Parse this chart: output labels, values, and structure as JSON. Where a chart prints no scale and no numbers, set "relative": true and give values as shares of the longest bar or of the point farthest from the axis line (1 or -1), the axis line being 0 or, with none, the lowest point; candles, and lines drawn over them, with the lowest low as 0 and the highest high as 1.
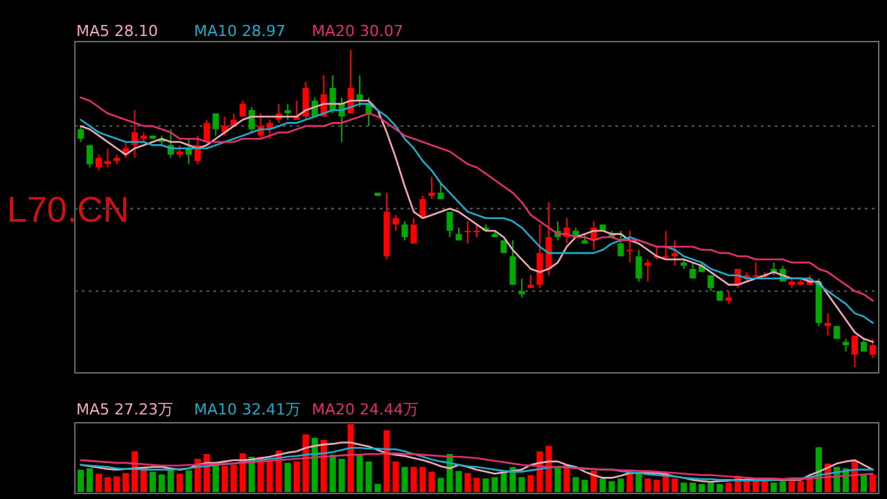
{
  "chart_data": [
    {
      "type": "candlestick",
      "relative": true,
      "legend": "top left",
      "annotations": [
        "L70.CN"
      ],
      "categories": [
        null,
        null,
        null,
        null,
        null,
        null,
        null,
        null,
        null,
        null,
        null,
        null,
        null,
        null,
        null,
        null,
        null,
        null,
        null,
        null,
        null,
        null,
        null,
        null,
        null,
        null,
        null,
        null,
        null,
        null,
        null,
        null,
        null,
        null,
        null,
        null,
        null,
        null,
        null,
        null,
        null,
        null,
        null,
        null,
        null,
        null,
        null,
        null,
        null,
        null,
        null,
        null,
        null,
        null,
        null,
        null,
        null,
        null,
        null,
        null,
        null,
        null,
        null,
        null,
        null,
        null,
        null,
        null,
        null,
        null,
        null,
        null,
        null,
        null,
        null,
        null,
        null,
        null,
        null,
        null,
        null,
        null,
        null,
        null,
        null,
        null,
        null,
        null,
        null
      ],
      "ohlc": [
        [
          0.75,
          0.76,
          0.71,
          0.72
        ],
        [
          0.7,
          0.7,
          0.63,
          0.64
        ],
        [
          0.63,
          0.67,
          0.62,
          0.66
        ],
        [
          0.64,
          0.69,
          0.63,
          0.65
        ],
        [
          0.65,
          0.67,
          0.64,
          0.66
        ],
        [
          0.67,
          0.71,
          0.66,
          0.69
        ],
        [
          0.7,
          0.81,
          0.66,
          0.74
        ],
        [
          0.72,
          0.74,
          0.71,
          0.73
        ],
        [
          0.73,
          0.73,
          0.72,
          0.72
        ],
        [
          0.72,
          0.73,
          0.7,
          0.71
        ],
        [
          0.7,
          0.75,
          0.66,
          0.67
        ],
        [
          0.67,
          0.7,
          0.66,
          0.68
        ],
        [
          0.69,
          0.72,
          0.64,
          0.67
        ],
        [
          0.65,
          0.73,
          0.64,
          0.7
        ],
        [
          0.71,
          0.78,
          0.71,
          0.77
        ],
        [
          0.8,
          0.8,
          0.73,
          0.75
        ],
        [
          0.74,
          0.79,
          0.73,
          0.76
        ],
        [
          0.76,
          0.8,
          0.76,
          0.78
        ],
        [
          0.79,
          0.84,
          0.79,
          0.83
        ],
        [
          0.81,
          0.82,
          0.74,
          0.75
        ],
        [
          0.73,
          0.8,
          0.72,
          0.76
        ],
        [
          0.75,
          0.78,
          0.72,
          0.77
        ],
        [
          0.78,
          0.83,
          0.77,
          0.8
        ],
        [
          0.81,
          0.83,
          0.78,
          0.8
        ],
        [
          0.78,
          0.84,
          0.78,
          0.79
        ],
        [
          0.79,
          0.9,
          0.78,
          0.88
        ],
        [
          0.84,
          0.85,
          0.79,
          0.79
        ],
        [
          0.79,
          0.92,
          0.79,
          0.86
        ],
        [
          0.88,
          0.92,
          0.8,
          0.81
        ],
        [
          0.83,
          0.85,
          0.71,
          0.79
        ],
        [
          0.8,
          1,
          0.8,
          0.88
        ],
        [
          0.86,
          0.92,
          0.82,
          0.84
        ],
        [
          0.83,
          0.85,
          0.76,
          0.8
        ],
        [
          0.55,
          0.55,
          0.54,
          0.54
        ],
        [
          0.35,
          0.55,
          0.34,
          0.49
        ],
        [
          0.45,
          0.48,
          0.43,
          0.47
        ],
        [
          0.45,
          0.46,
          0.4,
          0.41
        ],
        [
          0.39,
          0.47,
          0.39,
          0.45
        ],
        [
          0.47,
          0.54,
          0.47,
          0.53
        ],
        [
          0.54,
          0.6,
          0.53,
          0.55
        ],
        [
          0.55,
          0.58,
          0.53,
          0.53
        ],
        [
          0.49,
          0.49,
          0.41,
          0.43
        ],
        [
          0.42,
          0.44,
          0.4,
          0.4
        ],
        [
          0.43,
          0.46,
          0.39,
          0.43
        ],
        [
          0.43,
          0.45,
          0.41,
          0.43
        ],
        [
          0.44,
          0.45,
          0.43,
          0.43
        ],
        [
          0.42,
          0.43,
          0.41,
          0.41
        ],
        [
          0.4,
          0.4,
          0.36,
          0.36
        ],
        [
          0.35,
          0.4,
          0.26,
          0.26
        ],
        [
          0.24,
          0.28,
          0.22,
          0.23
        ],
        [
          0.25,
          0.29,
          0.25,
          0.26
        ],
        [
          0.26,
          0.45,
          0.25,
          0.36
        ],
        [
          0.31,
          0.52,
          0.29,
          0.41
        ],
        [
          0.43,
          0.46,
          0.4,
          0.41
        ],
        [
          0.41,
          0.47,
          0.39,
          0.44
        ],
        [
          0.43,
          0.44,
          0.41,
          0.41
        ],
        [
          0.4,
          0.42,
          0.39,
          0.39
        ],
        [
          0.4,
          0.46,
          0.37,
          0.44
        ],
        [
          0.45,
          0.45,
          0.43,
          0.43
        ],
        [
          0.42,
          0.43,
          0.41,
          0.41
        ],
        [
          0.39,
          0.43,
          0.35,
          0.35
        ],
        [
          0.37,
          0.43,
          0.33,
          0.37
        ],
        [
          0.35,
          0.37,
          0.27,
          0.28
        ],
        [
          0.32,
          0.34,
          0.27,
          0.33
        ],
        [
          0.35,
          0.38,
          0.34,
          0.35
        ],
        [
          0.35,
          0.43,
          0.34,
          0.35
        ],
        [
          0.35,
          0.4,
          0.32,
          0.36
        ],
        [
          0.33,
          0.34,
          0.31,
          0.32
        ],
        [
          0.31,
          0.33,
          0.28,
          0.28
        ],
        [
          0.32,
          0.33,
          0.3,
          0.3
        ],
        [
          0.29,
          0.29,
          0.24,
          0.25
        ],
        [
          0.24,
          0.24,
          0.21,
          0.21
        ],
        [
          0.21,
          0.24,
          0.2,
          0.22
        ],
        [
          0.26,
          0.31,
          0.25,
          0.31
        ],
        [
          0.28,
          0.3,
          0.27,
          0.29
        ],
        [
          0.29,
          0.33,
          0.28,
          0.29
        ],
        [
          0.29,
          0.3,
          0.28,
          0.29
        ],
        [
          0.31,
          0.33,
          0.29,
          0.3
        ],
        [
          0.31,
          0.32,
          0.27,
          0.27
        ],
        [
          0.26,
          0.28,
          0.25,
          0.27
        ],
        [
          0.26,
          0.28,
          0.26,
          0.27
        ],
        [
          0.26,
          0.29,
          0.26,
          0.28
        ],
        [
          0.27,
          0.28,
          0.13,
          0.14
        ],
        [
          0.13,
          0.17,
          0.1,
          0.14
        ],
        [
          0.13,
          0.13,
          0.09,
          0.09
        ],
        [
          0.08,
          0.09,
          0.05,
          0.07
        ],
        [
          0.04,
          0.1,
          0,
          0.1
        ],
        [
          0.08,
          0.09,
          0.05,
          0.05
        ],
        [
          0.04,
          0.09,
          0.03,
          0.07
        ]
      ],
      "colors": [
        "#00a800",
        "#00a800",
        "#ff0000",
        "#ff0000",
        "#ff0000",
        "#ff0000",
        "#ff0000",
        "#ff0000",
        "#00a800",
        "#00a800",
        "#00a800",
        "#ff0000",
        "#00a800",
        "#ff0000",
        "#ff0000",
        "#00a800",
        "#ff0000",
        "#ff0000",
        "#ff0000",
        "#00a800",
        "#ff0000",
        "#ff0000",
        "#ff0000",
        "#00a800",
        "#ff0000",
        "#ff0000",
        "#00a800",
        "#ff0000",
        "#00a800",
        "#00a800",
        "#ff0000",
        "#00a800",
        "#00a800",
        "#00a800",
        "#ff0000",
        "#ff0000",
        "#00a800",
        "#ff0000",
        "#ff0000",
        "#ff0000",
        "#00a800",
        "#00a800",
        "#00a800",
        "#ff0000",
        "#ff0000",
        "#00a800",
        "#00a800",
        "#00a800",
        "#00a800",
        "#00a800",
        "#ff0000",
        "#ff0000",
        "#ff0000",
        "#00a800",
        "#ff0000",
        "#00a800",
        "#00a800",
        "#ff0000",
        "#00a800",
        "#00a800",
        "#00a800",
        "#ff0000",
        "#00a800",
        "#ff0000",
        "#ff0000",
        "#ff0000",
        "#ff0000",
        "#00a800",
        "#00a800",
        "#00a800",
        "#00a800",
        "#00a800",
        "#ff0000",
        "#ff0000",
        "#ff0000",
        "#ff0000",
        "#ff0000",
        "#00a800",
        "#00a800",
        "#ff0000",
        "#ff0000",
        "#ff0000",
        "#00a800",
        "#ff0000",
        "#00a800",
        "#00a800",
        "#ff0000",
        "#00a800",
        "#ff0000"
      ],
      "series": [
        {
          "name": "MA5 28.10",
          "type": "line",
          "color": "#f0a8b8",
          "values": [
            0.76,
            0.75,
            0.73,
            0.71,
            0.69,
            0.67,
            0.69,
            0.7,
            0.71,
            0.72,
            0.71,
            0.71,
            0.7,
            0.69,
            0.7,
            0.72,
            0.74,
            0.76,
            0.78,
            0.79,
            0.79,
            0.79,
            0.79,
            0.79,
            0.79,
            0.81,
            0.82,
            0.83,
            0.83,
            0.83,
            0.84,
            0.84,
            0.84,
            0.81,
            0.74,
            0.66,
            0.57,
            0.49,
            0.47,
            0.48,
            0.49,
            0.5,
            0.49,
            0.47,
            0.45,
            0.43,
            0.43,
            0.41,
            0.37,
            0.34,
            0.31,
            0.3,
            0.31,
            0.33,
            0.38,
            0.41,
            0.42,
            0.43,
            0.43,
            0.42,
            0.42,
            0.4,
            0.39,
            0.37,
            0.35,
            0.34,
            0.34,
            0.34,
            0.33,
            0.32,
            0.3,
            0.28,
            0.26,
            0.26,
            0.27,
            0.28,
            0.29,
            0.3,
            0.29,
            0.28,
            0.28,
            0.27,
            0.27,
            0.23,
            0.19,
            0.15,
            0.11,
            0.09,
            0.08
          ]
        },
        {
          "name": "MA10 28.97",
          "type": "line",
          "color": "#1eaac8",
          "values": [
            0.78,
            0.76,
            0.74,
            0.73,
            0.72,
            0.71,
            0.71,
            0.71,
            0.7,
            0.7,
            0.69,
            0.69,
            0.69,
            0.69,
            0.69,
            0.7,
            0.71,
            0.72,
            0.73,
            0.74,
            0.75,
            0.75,
            0.76,
            0.77,
            0.77,
            0.78,
            0.79,
            0.8,
            0.81,
            0.81,
            0.82,
            0.83,
            0.83,
            0.81,
            0.79,
            0.76,
            0.72,
            0.69,
            0.65,
            0.62,
            0.58,
            0.55,
            0.52,
            0.49,
            0.48,
            0.47,
            0.47,
            0.47,
            0.46,
            0.44,
            0.41,
            0.38,
            0.36,
            0.36,
            0.36,
            0.36,
            0.36,
            0.36,
            0.37,
            0.39,
            0.4,
            0.41,
            0.4,
            0.39,
            0.38,
            0.38,
            0.37,
            0.35,
            0.34,
            0.33,
            0.31,
            0.3,
            0.29,
            0.29,
            0.28,
            0.28,
            0.28,
            0.28,
            0.28,
            0.28,
            0.28,
            0.28,
            0.26,
            0.24,
            0.22,
            0.2,
            0.17,
            0.16,
            0.14
          ]
        },
        {
          "name": "MA20 30.07",
          "type": "line",
          "color": "#e0306a",
          "values": [
            0.85,
            0.84,
            0.82,
            0.8,
            0.79,
            0.78,
            0.77,
            0.76,
            0.76,
            0.75,
            0.74,
            0.72,
            0.72,
            0.72,
            0.71,
            0.71,
            0.71,
            0.71,
            0.72,
            0.72,
            0.72,
            0.73,
            0.74,
            0.74,
            0.75,
            0.76,
            0.76,
            0.76,
            0.77,
            0.77,
            0.78,
            0.79,
            0.8,
            0.79,
            0.77,
            0.75,
            0.73,
            0.72,
            0.71,
            0.7,
            0.69,
            0.68,
            0.66,
            0.64,
            0.63,
            0.61,
            0.59,
            0.57,
            0.55,
            0.52,
            0.48,
            0.46,
            0.44,
            0.42,
            0.42,
            0.41,
            0.41,
            0.4,
            0.41,
            0.41,
            0.4,
            0.4,
            0.4,
            0.39,
            0.38,
            0.38,
            0.38,
            0.38,
            0.38,
            0.37,
            0.37,
            0.36,
            0.36,
            0.35,
            0.35,
            0.34,
            0.34,
            0.34,
            0.34,
            0.33,
            0.33,
            0.33,
            0.31,
            0.3,
            0.28,
            0.26,
            0.24,
            0.23,
            0.21
          ]
        }
      ],
      "ref_lines": [
        {
          "axis": "y",
          "value": 0.76,
          "color": "#505050",
          "line_style": "dotted"
        },
        {
          "axis": "y",
          "value": 0.5,
          "color": "#505050",
          "line_style": "dotted"
        },
        {
          "axis": "y",
          "value": 0.24,
          "color": "#505050",
          "line_style": "dotted"
        }
      ]
    },
    {
      "type": "bar",
      "relative": true,
      "legend": "top left",
      "categories": [
        null,
        null,
        null,
        null,
        null,
        null,
        null,
        null,
        null,
        null,
        null,
        null,
        null,
        null,
        null,
        null,
        null,
        null,
        null,
        null,
        null,
        null,
        null,
        null,
        null,
        null,
        null,
        null,
        null,
        null,
        null,
        null,
        null,
        null,
        null,
        null,
        null,
        null,
        null,
        null,
        null,
        null,
        null,
        null,
        null,
        null,
        null,
        null,
        null,
        null,
        null,
        null,
        null,
        null,
        null,
        null,
        null,
        null,
        null,
        null,
        null,
        null,
        null,
        null,
        null,
        null,
        null,
        null,
        null,
        null,
        null,
        null,
        null,
        null,
        null,
        null,
        null,
        null,
        null,
        null,
        null,
        null,
        null,
        null,
        null,
        null,
        null,
        null,
        null
      ],
      "series": [
        {
          "type": "bar",
          "values": [
            0.33,
            0.35,
            0.27,
            0.22,
            0.23,
            0.28,
            0.6,
            0.37,
            0.3,
            0.26,
            0.35,
            0.27,
            0.32,
            0.49,
            0.56,
            0.4,
            0.39,
            0.4,
            0.57,
            0.52,
            0.52,
            0.47,
            0.61,
            0.43,
            0.45,
            0.85,
            0.8,
            0.77,
            0.55,
            0.49,
            1,
            0.55,
            0.45,
            0.12,
            0.91,
            0.45,
            0.37,
            0.37,
            0.37,
            0.3,
            0.21,
            0.56,
            0.31,
            0.28,
            0.21,
            0.2,
            0.22,
            0.32,
            0.37,
            0.22,
            0.25,
            0.6,
            0.68,
            0.37,
            0.4,
            0.22,
            0.18,
            0.32,
            0.2,
            0.16,
            0.2,
            0.32,
            0.27,
            0.2,
            0.18,
            0.3,
            0.2,
            0.14,
            0.14,
            0.12,
            0.14,
            0.12,
            0.14,
            0.24,
            0.16,
            0.16,
            0.16,
            0.14,
            0.16,
            0.16,
            0.16,
            0.2,
            0.66,
            0.42,
            0.37,
            0.35,
            0.46,
            0.26,
            0.26
          ],
          "colors": [
            "#00a800",
            "#00a800",
            "#ff0000",
            "#ff0000",
            "#ff0000",
            "#ff0000",
            "#ff0000",
            "#ff0000",
            "#00a800",
            "#00a800",
            "#00a800",
            "#ff0000",
            "#00a800",
            "#ff0000",
            "#ff0000",
            "#00a800",
            "#ff0000",
            "#ff0000",
            "#ff0000",
            "#00a800",
            "#ff0000",
            "#ff0000",
            "#ff0000",
            "#00a800",
            "#ff0000",
            "#ff0000",
            "#00a800",
            "#ff0000",
            "#00a800",
            "#00a800",
            "#ff0000",
            "#00a800",
            "#00a800",
            "#00a800",
            "#ff0000",
            "#ff0000",
            "#00a800",
            "#ff0000",
            "#ff0000",
            "#ff0000",
            "#00a800",
            "#00a800",
            "#00a800",
            "#ff0000",
            "#ff0000",
            "#00a800",
            "#00a800",
            "#00a800",
            "#00a800",
            "#00a800",
            "#ff0000",
            "#ff0000",
            "#ff0000",
            "#00a800",
            "#ff0000",
            "#00a800",
            "#00a800",
            "#ff0000",
            "#00a800",
            "#00a800",
            "#00a800",
            "#ff0000",
            "#00a800",
            "#ff0000",
            "#ff0000",
            "#ff0000",
            "#ff0000",
            "#00a800",
            "#00a800",
            "#00a800",
            "#00a800",
            "#00a800",
            "#ff0000",
            "#ff0000",
            "#ff0000",
            "#ff0000",
            "#ff0000",
            "#00a800",
            "#00a800",
            "#ff0000",
            "#ff0000",
            "#ff0000",
            "#00a800",
            "#ff0000",
            "#00a800",
            "#00a800",
            "#ff0000",
            "#00a800",
            "#ff0000"
          ]
        },
        {
          "name": "MA5 27.23万",
          "type": "line",
          "color": "#f0a8b8",
          "values": [
            0.4,
            0.38,
            0.36,
            0.34,
            0.33,
            0.34,
            0.35,
            0.36,
            0.37,
            0.37,
            0.35,
            0.33,
            0.35,
            0.4,
            0.43,
            0.43,
            0.45,
            0.47,
            0.47,
            0.48,
            0.5,
            0.52,
            0.55,
            0.58,
            0.6,
            0.65,
            0.68,
            0.7,
            0.71,
            0.73,
            0.73,
            0.7,
            0.67,
            0.62,
            0.57,
            0.55,
            0.53,
            0.5,
            0.47,
            0.43,
            0.38,
            0.35,
            0.4,
            0.37,
            0.33,
            0.3,
            0.27,
            0.29,
            0.31,
            0.33,
            0.4,
            0.43,
            0.45,
            0.45,
            0.4,
            0.37,
            0.3,
            0.25,
            0.21,
            0.21,
            0.24,
            0.28,
            0.28,
            0.28,
            0.28,
            0.26,
            0.23,
            0.21,
            0.18,
            0.16,
            0.15,
            0.16,
            0.17,
            0.18,
            0.18,
            0.18,
            0.18,
            0.18,
            0.18,
            0.18,
            0.18,
            0.25,
            0.3,
            0.36,
            0.42,
            0.45,
            0.47,
            0.4,
            0.33
          ]
        },
        {
          "name": "MA10 32.41万",
          "type": "line",
          "color": "#1eaac8",
          "values": [
            0.4,
            0.39,
            0.38,
            0.37,
            0.35,
            0.34,
            0.34,
            0.33,
            0.33,
            0.33,
            0.33,
            0.34,
            0.35,
            0.37,
            0.38,
            0.4,
            0.41,
            0.42,
            0.44,
            0.45,
            0.47,
            0.49,
            0.5,
            0.52,
            0.53,
            0.55,
            0.56,
            0.57,
            0.59,
            0.62,
            0.65,
            0.65,
            0.64,
            0.64,
            0.63,
            0.63,
            0.6,
            0.56,
            0.52,
            0.48,
            0.45,
            0.43,
            0.4,
            0.38,
            0.37,
            0.35,
            0.33,
            0.31,
            0.3,
            0.3,
            0.32,
            0.34,
            0.36,
            0.37,
            0.37,
            0.36,
            0.35,
            0.34,
            0.33,
            0.33,
            0.31,
            0.29,
            0.28,
            0.26,
            0.25,
            0.24,
            0.23,
            0.21,
            0.2,
            0.19,
            0.19,
            0.18,
            0.18,
            0.17,
            0.17,
            0.17,
            0.17,
            0.18,
            0.19,
            0.2,
            0.2,
            0.22,
            0.25,
            0.27,
            0.29,
            0.31,
            0.33,
            0.33,
            0.33
          ]
        },
        {
          "name": "MA20 24.44万",
          "type": "line",
          "color": "#e0306a",
          "values": [
            0.47,
            0.46,
            0.45,
            0.44,
            0.43,
            0.43,
            0.42,
            0.41,
            0.4,
            0.39,
            0.39,
            0.39,
            0.4,
            0.4,
            0.41,
            0.41,
            0.42,
            0.42,
            0.43,
            0.44,
            0.45,
            0.46,
            0.47,
            0.48,
            0.49,
            0.5,
            0.51,
            0.52,
            0.53,
            0.54,
            0.55,
            0.55,
            0.56,
            0.56,
            0.57,
            0.57,
            0.56,
            0.56,
            0.55,
            0.54,
            0.53,
            0.52,
            0.52,
            0.51,
            0.5,
            0.48,
            0.46,
            0.44,
            0.42,
            0.4,
            0.39,
            0.38,
            0.37,
            0.37,
            0.36,
            0.35,
            0.34,
            0.34,
            0.33,
            0.33,
            0.32,
            0.32,
            0.31,
            0.31,
            0.3,
            0.29,
            0.28,
            0.27,
            0.26,
            0.25,
            0.25,
            0.24,
            0.23,
            0.22,
            0.21,
            0.2,
            0.2,
            0.2,
            0.19,
            0.19,
            0.19,
            0.2,
            0.21,
            0.22,
            0.23,
            0.24,
            0.25,
            0.26,
            0.27
          ]
        }
      ]
    }
  ]
}
